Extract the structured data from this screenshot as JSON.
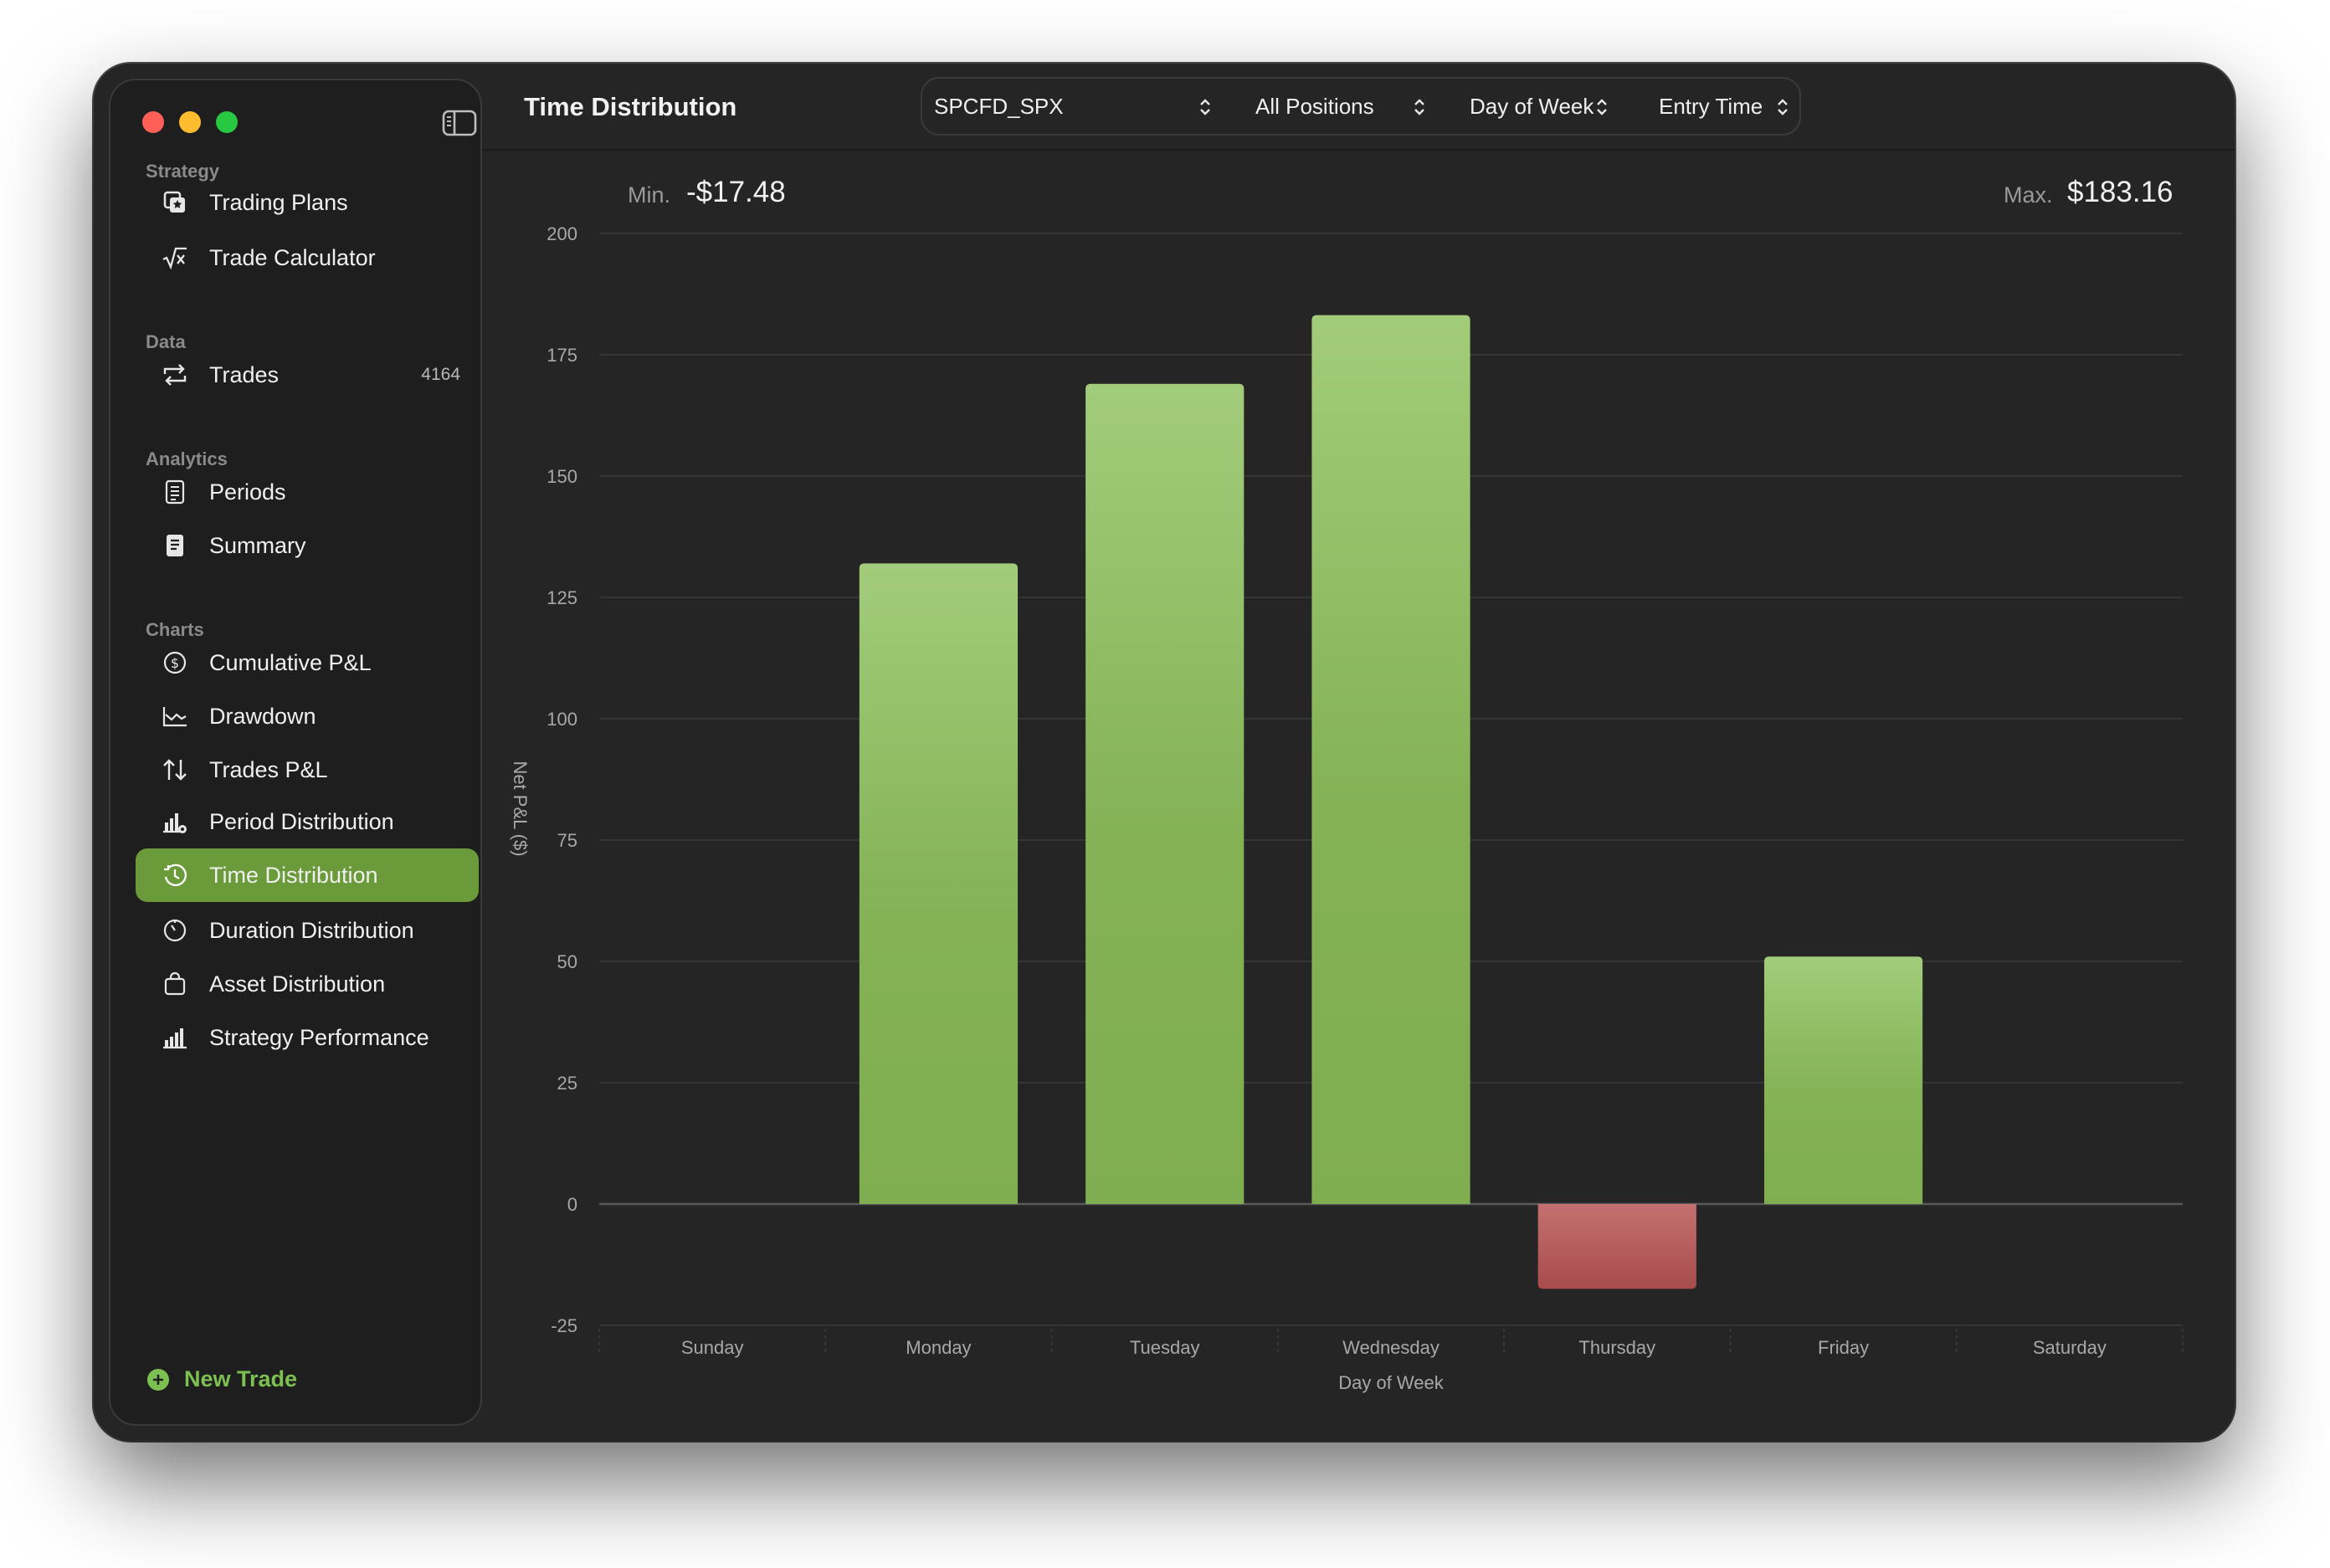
{
  "window": {
    "title": "Time Distribution"
  },
  "sidebar": {
    "sections": [
      {
        "label": "Strategy",
        "items": [
          {
            "label": "Trading Plans",
            "icon": "trading-plans-icon"
          },
          {
            "label": "Trade Calculator",
            "icon": "sqrt-x-icon"
          }
        ]
      },
      {
        "label": "Data",
        "items": [
          {
            "label": "Trades",
            "icon": "repeat-icon",
            "count": "4164"
          }
        ]
      },
      {
        "label": "Analytics",
        "items": [
          {
            "label": "Periods",
            "icon": "document-icon"
          },
          {
            "label": "Summary",
            "icon": "filled-document-icon"
          }
        ]
      },
      {
        "label": "Charts",
        "items": [
          {
            "label": "Cumulative P&L",
            "icon": "dollar-circle-icon"
          },
          {
            "label": "Drawdown",
            "icon": "drawdown-chart-icon"
          },
          {
            "label": "Trades P&L",
            "icon": "up-down-arrows-icon"
          },
          {
            "label": "Period Distribution",
            "icon": "bar-chart-gear-icon"
          },
          {
            "label": "Time Distribution",
            "icon": "clock-history-icon"
          },
          {
            "label": "Duration Distribution",
            "icon": "timer-icon"
          },
          {
            "label": "Asset Distribution",
            "icon": "bag-icon"
          },
          {
            "label": "Strategy Performance",
            "icon": "bar-chart-icon"
          }
        ]
      }
    ],
    "active_item": "Time Distribution",
    "new_trade_label": "New Trade"
  },
  "toolbar": {
    "title": "Time Distribution",
    "symbol_select": "SPCFD_SPX",
    "positions_select": "All Positions",
    "group_select": "Day of Week",
    "time_select": "Entry Time"
  },
  "stats": {
    "min_label": "Min.",
    "min_value": "-$17.48",
    "max_label": "Max.",
    "max_value": "$183.16"
  },
  "colors": {
    "accent": "#6a9a3a",
    "positive_bar": "#8ab85c",
    "negative_bar": "#b35a5a",
    "new_trade": "#7dc052"
  },
  "chart_data": {
    "type": "bar",
    "categories": [
      "Sunday",
      "Monday",
      "Tuesday",
      "Wednesday",
      "Thursday",
      "Friday",
      "Saturday"
    ],
    "values": [
      0,
      132,
      169,
      183.16,
      -17.48,
      51,
      0
    ],
    "xlabel": "Day of Week",
    "ylabel": "Net P&L ($)",
    "ylim": [
      -25,
      200
    ],
    "yticks": [
      200,
      175,
      150,
      125,
      100,
      75,
      50,
      25,
      0,
      -25
    ],
    "grid": true
  }
}
